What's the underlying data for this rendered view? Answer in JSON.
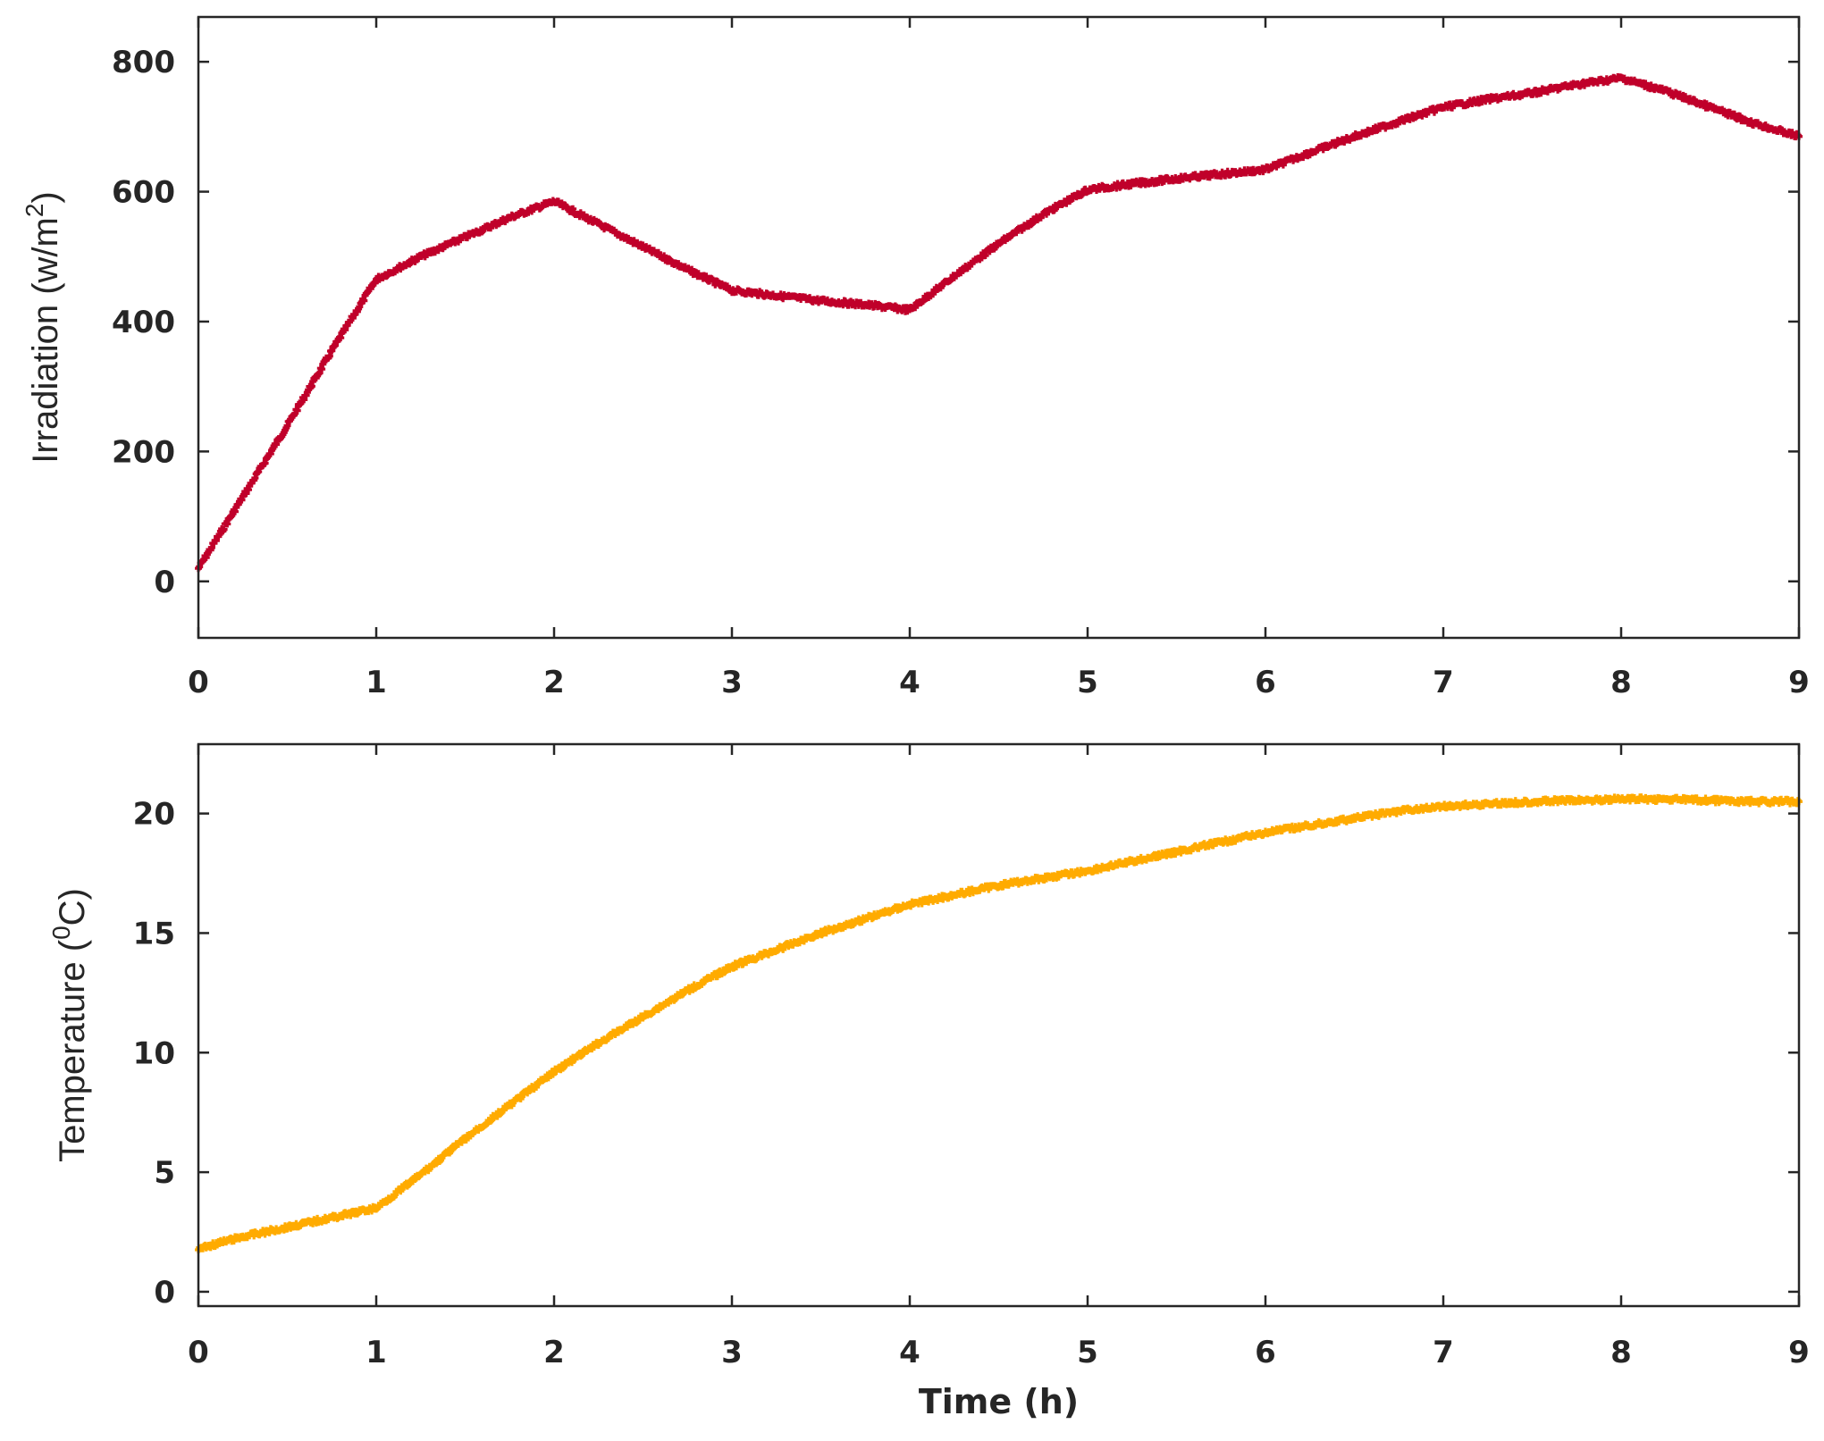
{
  "chart_data": [
    {
      "type": "scatter",
      "title": "",
      "xlabel": "",
      "ylabel": "Irradiation (w/m2)",
      "ylabel_parts": {
        "main": "Irradiation (w/m",
        "sup": "2",
        "end": ")"
      },
      "xlim": [
        0,
        9
      ],
      "ylim": [
        -87,
        869
      ],
      "xticks": [
        0,
        1,
        2,
        3,
        4,
        5,
        6,
        7,
        8,
        9
      ],
      "yticks": [
        0,
        200,
        400,
        600,
        800
      ],
      "grid": false,
      "series": [
        {
          "name": "Irradiation",
          "color": "#c0002a",
          "marker": "+",
          "x": [
            0,
            0.25,
            0.5,
            0.75,
            1,
            1.25,
            1.5,
            1.75,
            2,
            2.25,
            2.5,
            2.75,
            3,
            3.25,
            3.5,
            3.75,
            4,
            4.25,
            4.5,
            4.75,
            5,
            5.25,
            5.5,
            5.75,
            6,
            6.25,
            6.5,
            6.75,
            7,
            7.25,
            7.5,
            7.75,
            8,
            8.25,
            8.5,
            8.75,
            9
          ],
          "values": [
            20,
            130,
            240,
            355,
            465,
            500,
            530,
            560,
            585,
            550,
            515,
            480,
            448,
            440,
            432,
            426,
            418,
            470,
            520,
            565,
            603,
            612,
            620,
            627,
            634,
            660,
            685,
            708,
            730,
            742,
            752,
            765,
            775,
            755,
            730,
            705,
            685
          ]
        }
      ]
    },
    {
      "type": "scatter",
      "title": "",
      "xlabel": "Time (h)",
      "ylabel": "Temperature (0C)",
      "ylabel_parts": {
        "main": "Temperature  (",
        "sup": "0",
        "end": "C)"
      },
      "xlim": [
        0,
        9
      ],
      "ylim": [
        -0.6,
        22.9
      ],
      "xticks": [
        0,
        1,
        2,
        3,
        4,
        5,
        6,
        7,
        8,
        9
      ],
      "yticks": [
        0,
        5,
        10,
        15,
        20
      ],
      "grid": false,
      "series": [
        {
          "name": "Temperature",
          "color": "#ffab00",
          "marker": "+",
          "x": [
            0,
            0.25,
            0.5,
            0.75,
            1,
            1.25,
            1.5,
            1.75,
            2,
            2.25,
            2.5,
            2.75,
            3,
            3.25,
            3.5,
            3.75,
            4,
            4.25,
            4.5,
            4.75,
            5,
            5.25,
            5.5,
            5.75,
            6,
            6.25,
            6.5,
            6.75,
            7,
            7.25,
            7.5,
            7.75,
            8,
            8.25,
            8.5,
            8.75,
            9
          ],
          "values": [
            1.8,
            2.3,
            2.7,
            3.1,
            3.5,
            4.9,
            6.4,
            7.8,
            9.2,
            10.4,
            11.5,
            12.6,
            13.6,
            14.3,
            15.0,
            15.6,
            16.2,
            16.6,
            17.0,
            17.3,
            17.6,
            18.0,
            18.4,
            18.8,
            19.2,
            19.5,
            19.8,
            20.1,
            20.3,
            20.4,
            20.5,
            20.55,
            20.6,
            20.6,
            20.55,
            20.5,
            20.5
          ]
        }
      ]
    }
  ]
}
